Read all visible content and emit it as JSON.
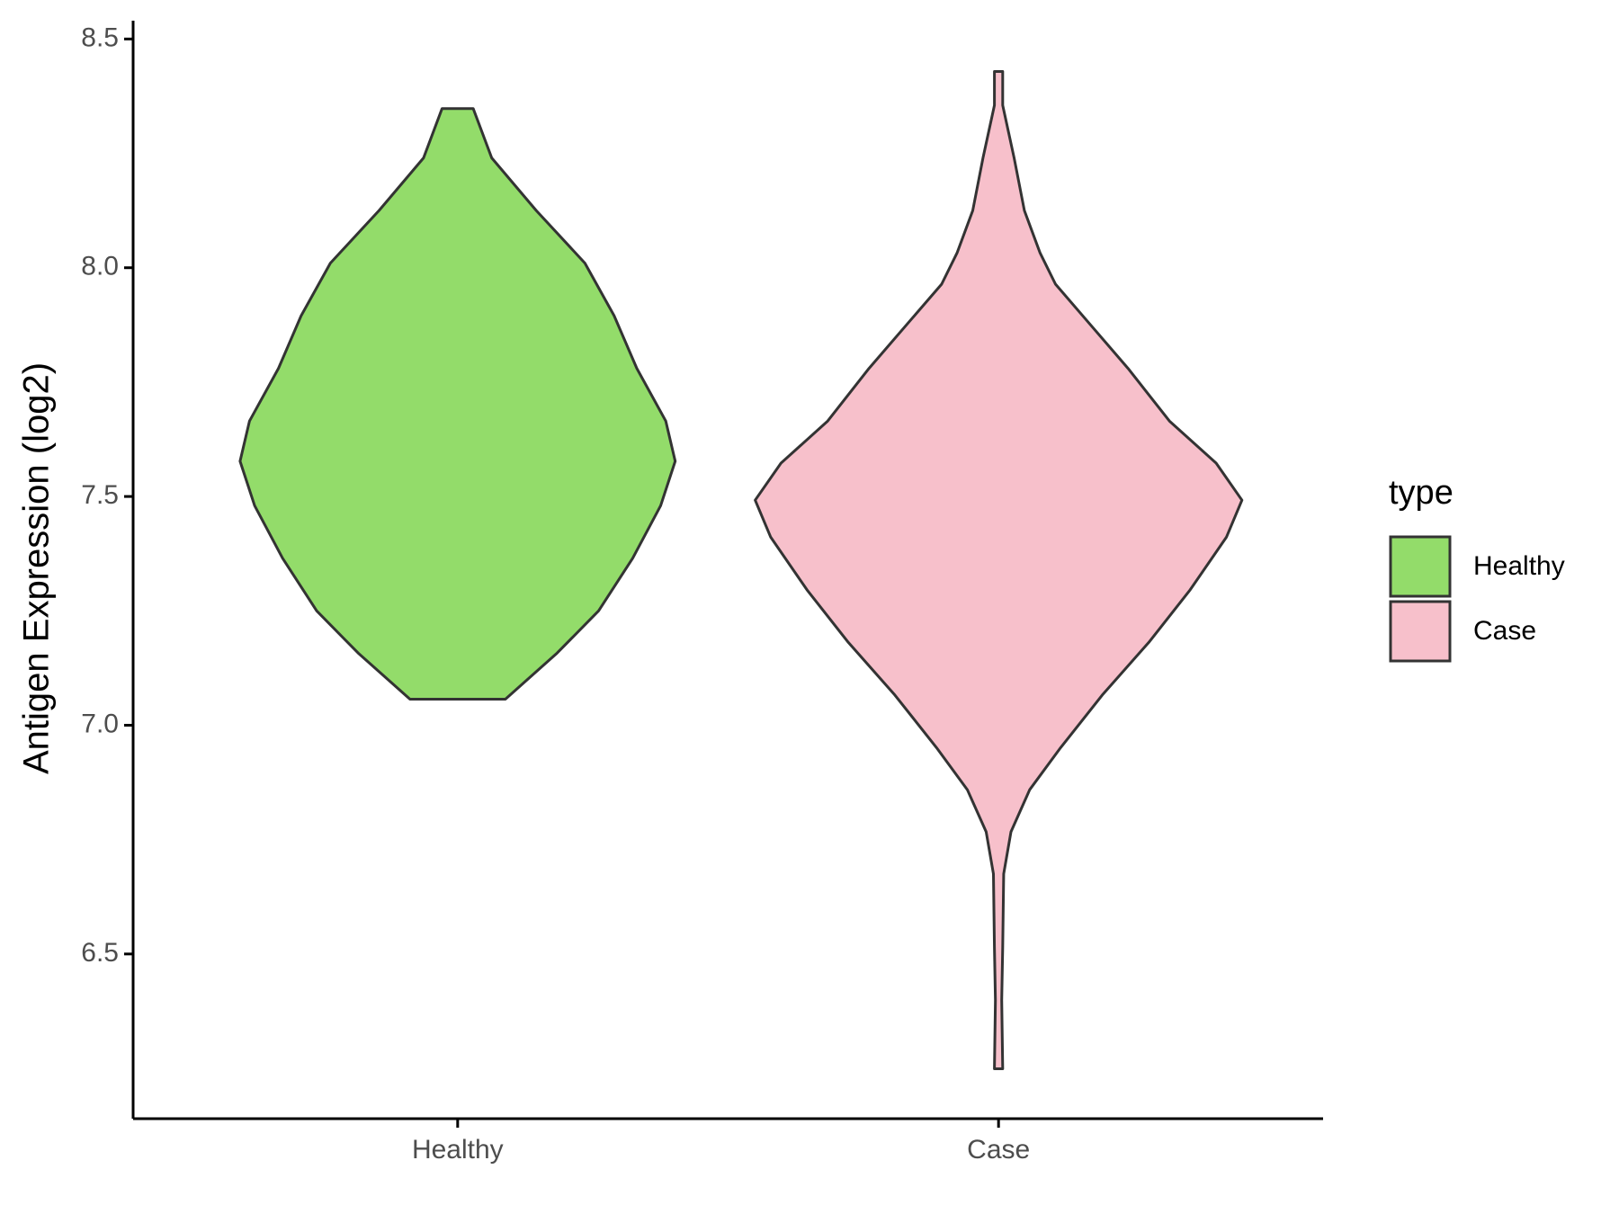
{
  "chart_data": {
    "type": "violin",
    "y_label": "Antigen Expression (log2)",
    "categories": [
      "Healthy",
      "Case"
    ],
    "legend_title": "type",
    "series": [
      {
        "name": "Healthy",
        "color": "#93dc6a",
        "y": [
          8.348,
          8.24,
          8.125,
          8.01,
          7.895,
          7.78,
          7.665,
          7.577,
          7.48,
          7.365,
          7.25,
          7.158,
          7.057
        ],
        "widths": [
          0.064,
          0.14,
          0.323,
          0.523,
          0.643,
          0.736,
          0.855,
          0.894,
          0.834,
          0.719,
          0.579,
          0.409,
          0.196
        ]
      },
      {
        "name": "Case",
        "color": "#f7c0cb",
        "y": [
          8.429,
          8.355,
          8.24,
          8.125,
          8.033,
          7.964,
          7.872,
          7.78,
          7.665,
          7.573,
          7.492,
          7.411,
          7.296,
          7.181,
          7.066,
          6.951,
          6.859,
          6.767,
          6.675,
          6.514,
          6.399,
          6.249
        ],
        "widths": [
          0.017,
          0.017,
          0.064,
          0.106,
          0.17,
          0.234,
          0.383,
          0.532,
          0.702,
          0.894,
          1,
          0.936,
          0.787,
          0.617,
          0.426,
          0.255,
          0.128,
          0.051,
          0.021,
          0.017,
          0.013,
          0.017
        ]
      }
    ],
    "ylim": [
      6.14,
      8.54
    ],
    "yticks": [
      6.5,
      {
        "value": 7,
        "label": "7.0"
      },
      7.5,
      {
        "value": 8,
        "label": "8.0"
      },
      8.5
    ]
  }
}
